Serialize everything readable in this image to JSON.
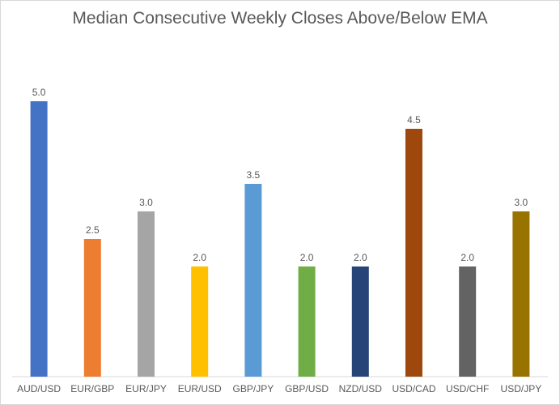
{
  "chart_data": {
    "type": "bar",
    "title": "Median Consecutive Weekly Closes Above/Below EMA",
    "categories": [
      "AUD/USD",
      "EUR/GBP",
      "EUR/JPY",
      "EUR/USD",
      "GBP/JPY",
      "GBP/USD",
      "NZD/USD",
      "USD/CAD",
      "USD/CHF",
      "USD/JPY"
    ],
    "values": [
      5.0,
      2.5,
      3.0,
      2.0,
      3.5,
      2.0,
      2.0,
      4.5,
      2.0,
      3.0
    ],
    "value_labels": [
      "5.0",
      "2.5",
      "3.0",
      "2.0",
      "3.5",
      "2.0",
      "2.0",
      "4.5",
      "2.0",
      "3.0"
    ],
    "colors": [
      "#4472C4",
      "#ED7D31",
      "#A5A5A5",
      "#FFC000",
      "#5B9BD5",
      "#70AD47",
      "#264478",
      "#9E480E",
      "#636363",
      "#997300"
    ],
    "xlabel": "",
    "ylabel": "",
    "ylim": [
      0,
      5.0
    ],
    "grid": false,
    "legend": "none"
  }
}
